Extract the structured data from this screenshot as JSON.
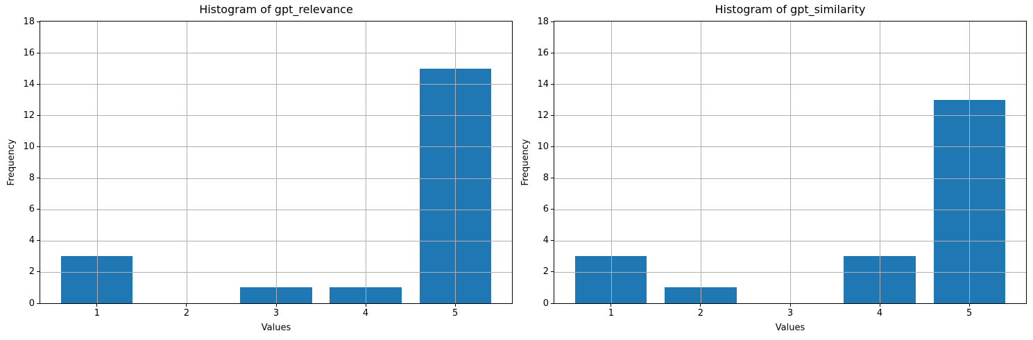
{
  "figure": {
    "background": "#ffffff",
    "bar_color": "#1f77b4",
    "grid_color": "#b0b0b0",
    "axis_color": "#000000",
    "text_color": "#000000"
  },
  "chart_data": [
    {
      "type": "bar",
      "title": "Histogram of gpt_relevance",
      "xlabel": "Values",
      "ylabel": "Frequency",
      "categories": [
        "1",
        "2",
        "3",
        "4",
        "5"
      ],
      "values": [
        3,
        0,
        1,
        1,
        15
      ],
      "ylim": [
        0,
        18
      ],
      "yticks": [
        0,
        2,
        4,
        6,
        8,
        10,
        12,
        14,
        16,
        18
      ],
      "grid": true,
      "legend_position": "none",
      "bar_color": "#1f77b4"
    },
    {
      "type": "bar",
      "title": "Histogram of gpt_similarity",
      "xlabel": "Values",
      "ylabel": "Frequency",
      "categories": [
        "1",
        "2",
        "3",
        "4",
        "5"
      ],
      "values": [
        3,
        1,
        0,
        3,
        13
      ],
      "ylim": [
        0,
        18
      ],
      "yticks": [
        0,
        2,
        4,
        6,
        8,
        10,
        12,
        14,
        16,
        18
      ],
      "grid": true,
      "legend_position": "none",
      "bar_color": "#1f77b4"
    }
  ]
}
